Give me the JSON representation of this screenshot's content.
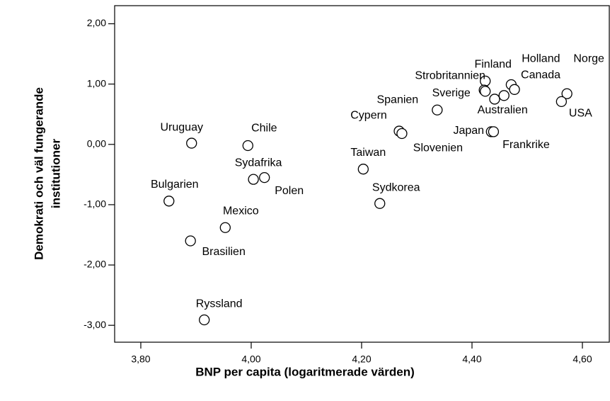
{
  "chart_data": {
    "type": "scatter",
    "xlabel": "BNP per capita (logaritmerade värden)",
    "ylabel": [
      "Demokrati och väl fungerande",
      "institutioner"
    ],
    "labels": [
      "Uruguay",
      "Chile",
      "Sydafrika",
      "Polen",
      "Bulgarien",
      "Mexico",
      "Brasilien",
      "Ryssland",
      "Cypern",
      "Slovenien",
      "Taiwan",
      "Sydkorea",
      "Spanien",
      "Finland",
      "Strobritannien",
      "Sverige",
      "Australien",
      "Holland",
      "Canada",
      "Norge",
      "USA",
      "Japan",
      "Frankrike",
      null
    ],
    "x": [
      3.892,
      3.994,
      4.004,
      4.024,
      3.851,
      3.953,
      3.89,
      3.915,
      4.268,
      4.273,
      4.203,
      4.233,
      4.337,
      4.424,
      4.422,
      4.424,
      4.458,
      4.471,
      4.477,
      4.572,
      4.562,
      4.435,
      4.439,
      4.441
    ],
    "values": [
      0.02,
      -0.02,
      -0.58,
      -0.55,
      -0.94,
      -1.38,
      -1.6,
      -2.91,
      0.22,
      0.18,
      -0.41,
      -0.98,
      0.57,
      1.05,
      0.9,
      0.88,
      0.81,
      0.99,
      0.91,
      0.84,
      0.71,
      0.21,
      0.21,
      0.75
    ],
    "xlim": [
      3.7526,
      4.65
    ],
    "ylim": [
      -3.28,
      2.3
    ],
    "xticks": [
      {
        "value": 3.8,
        "label": "3,80"
      },
      {
        "value": 4.0,
        "label": "4,00"
      },
      {
        "value": 4.2,
        "label": "4,20"
      },
      {
        "value": 4.4,
        "label": "4,40"
      },
      {
        "value": 4.6,
        "label": "4,60"
      }
    ],
    "yticks": [
      {
        "value": 2,
        "label": "2,00"
      },
      {
        "value": 1,
        "label": "1,00"
      },
      {
        "value": 0,
        "label": "0,00"
      },
      {
        "value": -1,
        "label": "-1,00"
      },
      {
        "value": -2,
        "label": "-2,00"
      },
      {
        "value": -3,
        "label": "-3,00"
      }
    ],
    "marker_color": "#000000"
  }
}
